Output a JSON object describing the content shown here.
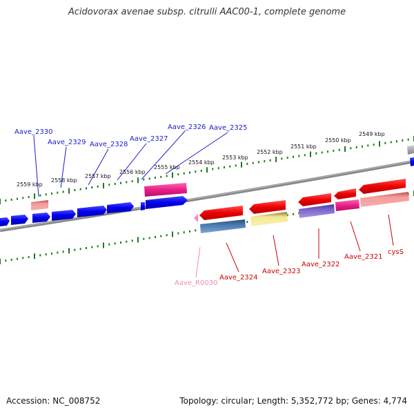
{
  "title": "Acidovorax avenae subsp. citrulli AAC00-1, complete genome",
  "footer": {
    "accession": "Accession: NC_008752",
    "topology": "Topology: circular; Length: 5,352,772 bp; Genes: 4,774"
  },
  "scale_labels": [
    "2559 kbp",
    "2558 kbp",
    "2557 kbp",
    "2556 kbp",
    "2555 kbp",
    "2554 kbp",
    "2553 kbp",
    "2552 kbp",
    "2551 kbp",
    "2550 kbp",
    "2549 kbp"
  ],
  "forward_genes": [
    {
      "name": "Aave_2330",
      "color": "#1a1acc"
    },
    {
      "name": "Aave_2329",
      "color": "#1a1acc"
    },
    {
      "name": "Aave_2328",
      "color": "#1a1acc"
    },
    {
      "name": "Aave_2327",
      "color": "#1a1acc"
    },
    {
      "name": "Aave_2326",
      "color": "#1a1acc"
    },
    {
      "name": "Aave_2325",
      "color": "#1a1acc"
    }
  ],
  "reverse_genes": [
    {
      "name": "Aave_R0030",
      "color": "#f08cb8"
    },
    {
      "name": "Aave_2324",
      "color": "#cc0000"
    },
    {
      "name": "Aave_2323",
      "color": "#cc0000"
    },
    {
      "name": "Aave_2322",
      "color": "#cc0000"
    },
    {
      "name": "Aave_2321",
      "color": "#cc0000"
    },
    {
      "name": "cysS",
      "color": "#cc0000"
    }
  ],
  "colors": {
    "forward_gene": "#0000ee",
    "reverse_gene": "#ee0000",
    "backbone": "#808080",
    "tick": "#1a7a1a",
    "rna": "#f08cb8"
  }
}
